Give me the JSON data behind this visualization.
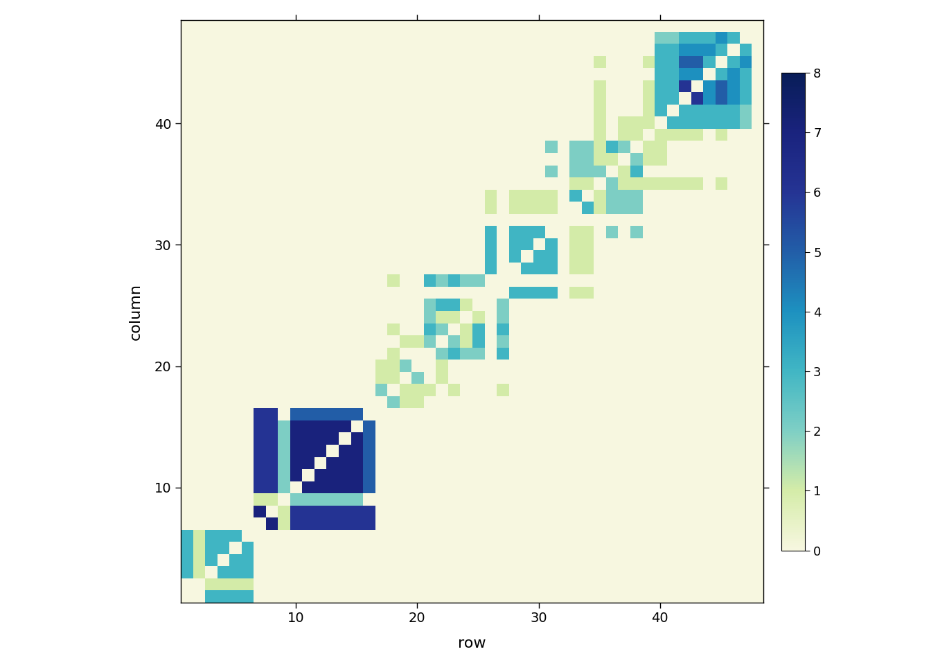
{
  "n": 48,
  "xlabel": "row",
  "ylabel": "column",
  "vmin": 0,
  "vmax": 8,
  "colorbar_ticks": [
    0,
    1,
    2,
    3,
    4,
    5,
    6,
    7,
    8
  ],
  "xticks": [
    10,
    20,
    30,
    40
  ],
  "yticks": [
    10,
    20,
    30,
    40
  ],
  "background_color": "#ffffff",
  "axes_facecolor": "#f2f2e8",
  "random_seed": 7
}
